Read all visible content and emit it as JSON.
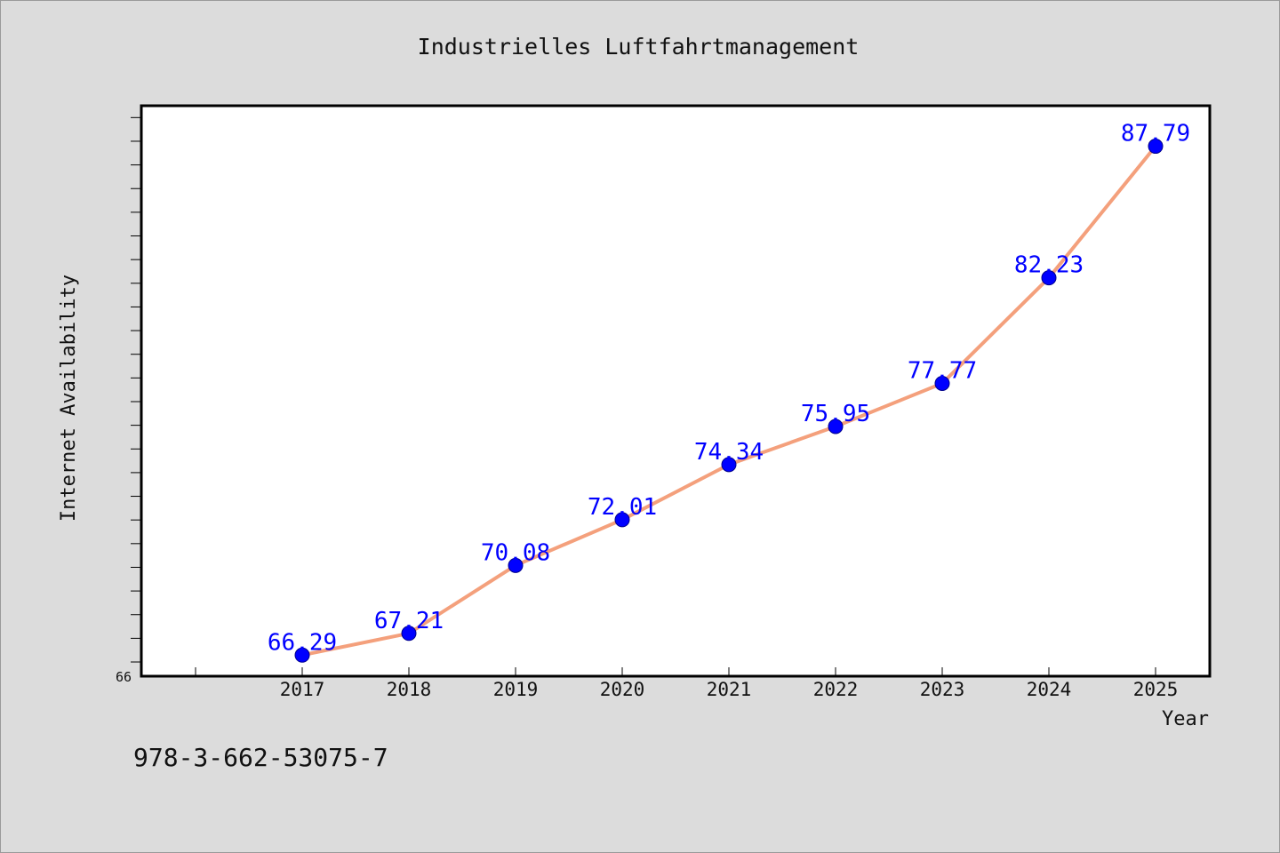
{
  "chart_data": {
    "type": "line",
    "title": "Industrielles Luftfahrtmanagement",
    "xlabel": "Year",
    "ylabel": "Internet Availability",
    "x": [
      "2017",
      "2018",
      "2019",
      "2020",
      "2021",
      "2022",
      "2023",
      "2024",
      "2025"
    ],
    "series": [
      {
        "values": [
          66.29,
          67.21,
          70.08,
          72.01,
          74.34,
          75.95,
          77.77,
          82.23,
          87.79
        ],
        "labels": [
          "66.29",
          "67.21",
          "70.08",
          "72.01",
          "74.34",
          "75.95",
          "77.77",
          "82.23",
          "87.79"
        ],
        "line_color": "#f4a07c",
        "marker_color": "#0000ff"
      }
    ],
    "ylim": [
      65.4,
      89.5
    ],
    "y_tick_labels": [
      "66"
    ],
    "grid": false,
    "legend": "none"
  },
  "footer": {
    "isbn": "978-3-662-53075-7"
  },
  "colors": {
    "background": "#dcdcdc",
    "plot_background": "#ffffff",
    "axis": "#000000"
  }
}
